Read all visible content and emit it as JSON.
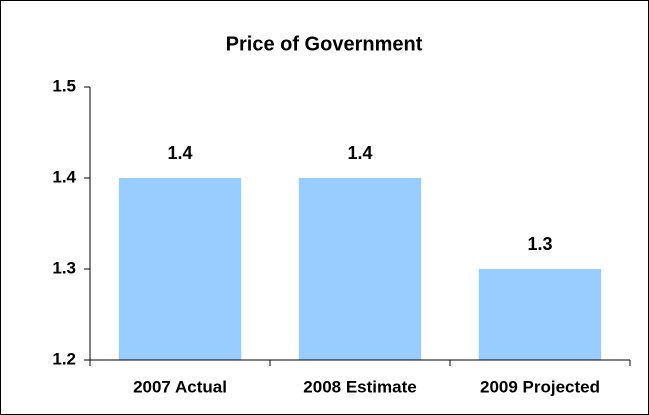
{
  "chart_data": {
    "type": "bar",
    "title": "Price of Government",
    "categories": [
      "2007 Actual",
      "2008 Estimate",
      "2009 Projected"
    ],
    "values": [
      1.4,
      1.4,
      1.3
    ],
    "color": "#99ccff",
    "ylim": [
      1.2,
      1.5
    ],
    "yticks": [
      1.2,
      1.3,
      1.4,
      1.5
    ],
    "grid": false
  }
}
